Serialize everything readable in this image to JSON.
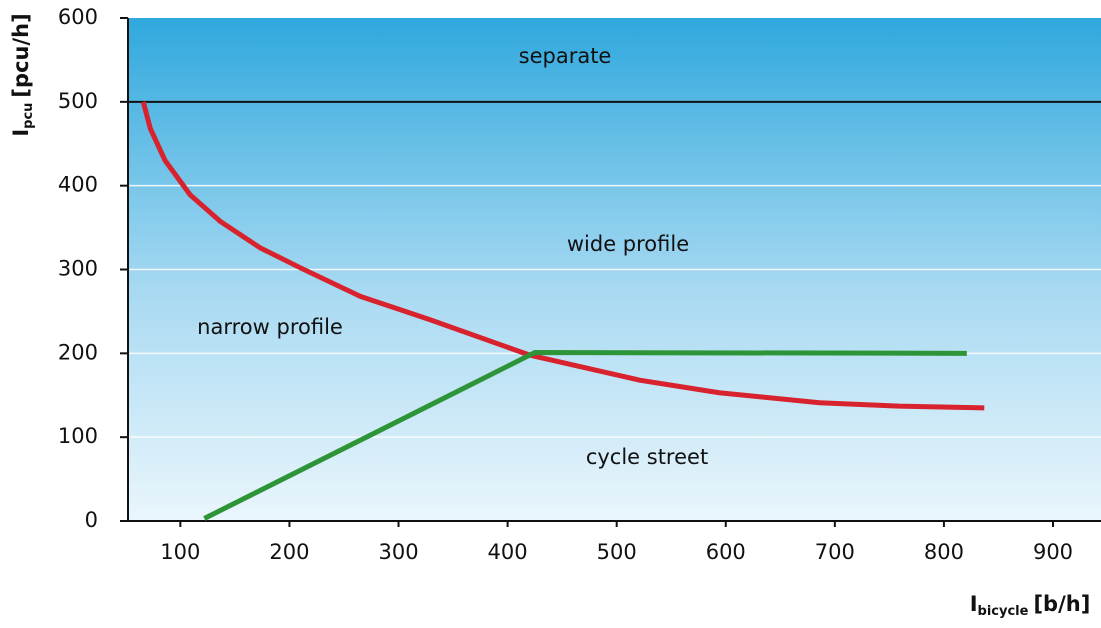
{
  "chart_data": {
    "type": "line",
    "y_label": {
      "main": "I",
      "sub": "pcu",
      "unit": "[pcu/h]"
    },
    "x_label": {
      "main": "I",
      "sub": "bicycle",
      "unit": "[b/h]"
    },
    "xlim": [
      52,
      944
    ],
    "ylim": [
      0,
      600
    ],
    "xticks": [
      100,
      200,
      300,
      400,
      500,
      600,
      700,
      800,
      900
    ],
    "yticks": [
      0,
      100,
      200,
      300,
      400,
      500,
      600
    ],
    "grid": true,
    "hlines": [
      500
    ],
    "annotations": [
      "separate",
      "wide profile",
      "narrow profile",
      "cycle street"
    ],
    "series": [
      {
        "color": "#d8232e",
        "x": [
          66,
          72.5,
          86,
          109,
          137,
          173,
          210,
          265,
          329,
          420,
          521,
          594,
          686,
          759,
          837
        ],
        "values": [
          500,
          468,
          430,
          389,
          357,
          326,
          302,
          268,
          240,
          198,
          168,
          153,
          141,
          137,
          135
        ]
      },
      {
        "color": "#2e9438",
        "x": [
          122,
          425,
          821
        ],
        "values": [
          3,
          201,
          200
        ]
      }
    ]
  }
}
